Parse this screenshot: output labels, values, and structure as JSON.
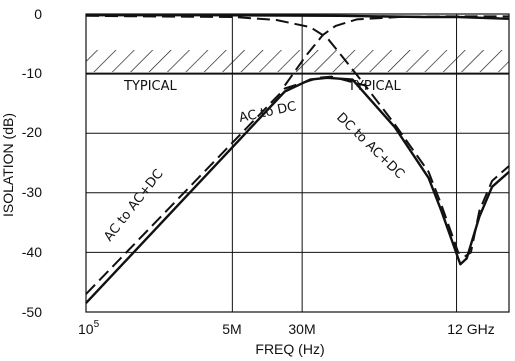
{
  "chart_data": {
    "type": "line",
    "xlabel": "FREQ (Hz)",
    "ylabel": "ISOLATION (dB)",
    "ylim": [
      -50,
      0
    ],
    "grid": true,
    "x_ticks": [
      {
        "base": "10",
        "exp": "5"
      },
      {
        "label": "5M"
      },
      {
        "label": "30M"
      },
      {
        "label": "12 GHz"
      }
    ],
    "y_ticks": [
      "0",
      "-10",
      "-20",
      "-30",
      "-40",
      "-50"
    ],
    "reference_line": {
      "y": -10
    },
    "annotations": [
      "TYPICAL",
      "TYPICAL",
      "AC to DC",
      "AC to AC+DC",
      "DC to AC+DC"
    ],
    "series": [
      {
        "style": "solid",
        "points": [
          [
            0.0,
            -48.5
          ],
          [
            0.47,
            -13
          ],
          [
            0.53,
            -11
          ],
          [
            0.57,
            -10.7
          ],
          [
            0.63,
            -11
          ],
          [
            0.73,
            -19
          ],
          [
            0.81,
            -27.5
          ],
          [
            0.84,
            -33
          ],
          [
            0.865,
            -38
          ],
          [
            0.88,
            -41
          ],
          [
            0.885,
            -42
          ],
          [
            0.9,
            -41
          ],
          [
            0.93,
            -34
          ],
          [
            0.96,
            -29
          ],
          [
            1.0,
            -26.5
          ]
        ]
      },
      {
        "style": "dashed",
        "points": [
          [
            0.0,
            -47
          ],
          [
            0.47,
            -12.5
          ],
          [
            0.55,
            -10.7
          ],
          [
            0.58,
            -10.5
          ],
          [
            0.66,
            -12
          ],
          [
            0.73,
            -18.5
          ],
          [
            0.81,
            -26.5
          ],
          [
            0.84,
            -32
          ],
          [
            0.865,
            -37
          ],
          [
            0.88,
            -40
          ],
          [
            0.895,
            -40.7
          ],
          [
            0.91,
            -40
          ],
          [
            0.93,
            -33
          ],
          [
            0.96,
            -28
          ],
          [
            1.0,
            -25.5
          ]
        ]
      },
      {
        "style": "dashed",
        "points": [
          [
            0.0,
            -0.3
          ],
          [
            0.15,
            -0.4
          ],
          [
            0.35,
            -0.5
          ],
          [
            0.45,
            -1.0
          ],
          [
            0.53,
            -2.2
          ],
          [
            0.57,
            -4
          ],
          [
            0.61,
            -7.5
          ],
          [
            0.66,
            -12
          ]
        ]
      },
      {
        "style": "dashed",
        "points": [
          [
            0.47,
            -12
          ],
          [
            0.52,
            -7
          ],
          [
            0.56,
            -3.5
          ],
          [
            0.59,
            -2
          ],
          [
            0.64,
            -0.9
          ],
          [
            0.74,
            -0.5
          ],
          [
            0.85,
            -0.4
          ],
          [
            1.0,
            -0.4
          ]
        ]
      },
      {
        "style": "solid",
        "points": [
          [
            0.0,
            -0.2
          ],
          [
            0.3,
            -0.2
          ],
          [
            0.6,
            -0.3
          ],
          [
            0.8,
            -0.5
          ],
          [
            0.88,
            -0.5
          ],
          [
            1.0,
            -0.8
          ]
        ]
      }
    ]
  }
}
